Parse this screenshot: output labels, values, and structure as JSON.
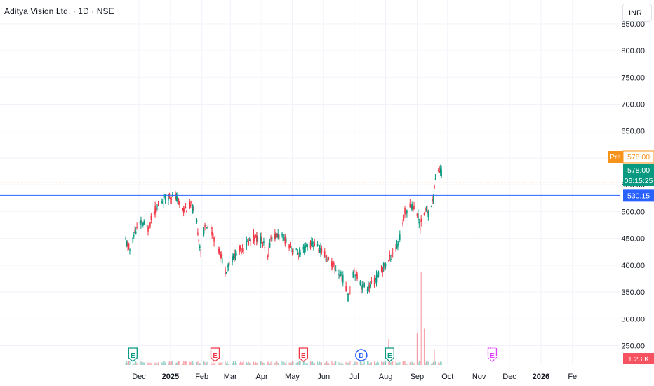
{
  "header": {
    "title": "Aditya Vision Ltd. · 1D · NSE",
    "currency_button": "INR"
  },
  "colors": {
    "up": "#089981",
    "down": "#f23645",
    "premarket": "#f7931a",
    "level_line": "#2962ff",
    "grid": "#f0f3fa",
    "text": "#131722"
  },
  "badges": {
    "premarket_label": "Pre",
    "premarket_price": "578.00",
    "last_price": "578.00",
    "countdown": "06:15:25",
    "level_price": "530.15",
    "volume_value": "1.23 K"
  },
  "events": [
    "E",
    "E",
    "E",
    "D",
    "E",
    "E"
  ],
  "chart_data": {
    "type": "candlestick",
    "symbol": "Aditya Vision Ltd.",
    "interval": "1D",
    "exchange": "NSE",
    "currency": "INR",
    "y_ticks": [
      "250.00",
      "300.00",
      "350.00",
      "400.00",
      "450.00",
      "500.00",
      "550.00",
      "600.00",
      "650.00",
      "700.00",
      "750.00",
      "800.00",
      "850.00"
    ],
    "x_ticks": [
      "Dec",
      "2025",
      "Feb",
      "Mar",
      "Apr",
      "May",
      "Jun",
      "Jul",
      "Aug",
      "Sep",
      "Oct",
      "Nov",
      "Dec",
      "2026",
      "Fe"
    ],
    "price_anchors": [
      [
        "2024-11-18",
        445
      ],
      [
        "2024-11-22",
        428
      ],
      [
        "2024-11-27",
        462
      ],
      [
        "2024-12-04",
        480
      ],
      [
        "2024-12-10",
        468
      ],
      [
        "2024-12-16",
        500
      ],
      [
        "2024-12-23",
        518
      ],
      [
        "2024-12-31",
        530
      ],
      [
        "2025-01-07",
        525
      ],
      [
        "2025-01-14",
        503
      ],
      [
        "2025-01-22",
        512
      ],
      [
        "2025-01-27",
        476
      ],
      [
        "2025-01-31",
        425
      ],
      [
        "2025-02-05",
        480
      ],
      [
        "2025-02-10",
        465
      ],
      [
        "2025-02-17",
        432
      ],
      [
        "2025-02-24",
        392
      ],
      [
        "2025-03-03",
        412
      ],
      [
        "2025-03-10",
        428
      ],
      [
        "2025-03-17",
        440
      ],
      [
        "2025-03-24",
        452
      ],
      [
        "2025-04-01",
        448
      ],
      [
        "2025-04-07",
        412
      ],
      [
        "2025-04-10",
        452
      ],
      [
        "2025-04-17",
        455
      ],
      [
        "2025-04-24",
        448
      ],
      [
        "2025-05-02",
        428
      ],
      [
        "2025-05-09",
        418
      ],
      [
        "2025-05-16",
        438
      ],
      [
        "2025-05-23",
        440
      ],
      [
        "2025-05-30",
        425
      ],
      [
        "2025-06-06",
        410
      ],
      [
        "2025-06-13",
        392
      ],
      [
        "2025-06-20",
        375
      ],
      [
        "2025-06-25",
        340
      ],
      [
        "2025-07-01",
        392
      ],
      [
        "2025-07-08",
        362
      ],
      [
        "2025-07-15",
        358
      ],
      [
        "2025-07-22",
        372
      ],
      [
        "2025-07-28",
        392
      ],
      [
        "2025-08-04",
        408
      ],
      [
        "2025-08-08",
        425
      ],
      [
        "2025-08-14",
        440
      ],
      [
        "2025-08-20",
        500
      ],
      [
        "2025-08-26",
        512
      ],
      [
        "2025-09-01",
        498
      ],
      [
        "2025-09-04",
        472
      ],
      [
        "2025-09-09",
        505
      ],
      [
        "2025-09-12",
        498
      ],
      [
        "2025-09-17",
        525
      ],
      [
        "2025-09-19",
        562
      ],
      [
        "2025-09-22",
        575
      ],
      [
        "2025-09-25",
        578
      ]
    ],
    "level_line": 530.15,
    "premarket": 578.0,
    "last": 578.0,
    "volume_spikes": [
      [
        "2025-08-04",
        0.28
      ],
      [
        "2025-09-01",
        0.34
      ],
      [
        "2025-09-05",
        1.0
      ],
      [
        "2025-09-08",
        0.39
      ],
      [
        "2025-09-18",
        0.16
      ]
    ],
    "ylim": [
      225,
      860
    ],
    "xlim": [
      "2024-11-01",
      "2026-02-18"
    ]
  }
}
